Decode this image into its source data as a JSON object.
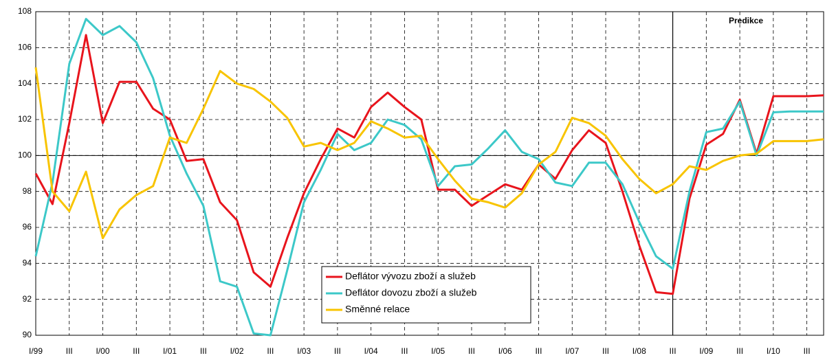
{
  "chart_data": {
    "type": "line",
    "categories": [
      "I/99",
      null,
      "III",
      null,
      "I/00",
      null,
      "III",
      null,
      "I/01",
      null,
      "III",
      null,
      "I/02",
      null,
      "III",
      null,
      "I/03",
      null,
      "III",
      null,
      "I/04",
      null,
      "III",
      null,
      "I/05",
      null,
      "III",
      null,
      "I/06",
      null,
      "III",
      null,
      "I/07",
      null,
      "III",
      null,
      "I/08",
      null,
      "III",
      null,
      "I/09",
      null,
      "III",
      null,
      "I/10",
      null,
      "III",
      null
    ],
    "series": [
      {
        "name": "Deflátor vývozu zboží a služeb",
        "color": "#e8141c",
        "values": [
          99.0,
          97.3,
          101.8,
          106.7,
          101.8,
          104.1,
          104.1,
          102.6,
          102.0,
          99.7,
          99.8,
          97.4,
          96.4,
          93.5,
          92.7,
          95.4,
          97.9,
          99.8,
          101.5,
          101.0,
          102.7,
          103.5,
          102.7,
          102.0,
          98.1,
          98.1,
          97.2,
          97.8,
          98.4,
          98.1,
          99.5,
          98.7,
          100.3,
          101.4,
          100.7,
          98.0,
          95.0,
          92.4,
          92.3,
          97.6,
          100.6,
          101.2,
          103.1,
          100.1,
          103.3,
          103.3,
          103.3,
          103.35
        ]
      },
      {
        "name": "Deflátor dovozu zboží a služeb",
        "color": "#3cc8c8",
        "values": [
          94.4,
          98.5,
          105.1,
          107.6,
          106.7,
          107.2,
          106.3,
          104.3,
          101.1,
          99.0,
          97.2,
          93.0,
          92.7,
          90.1,
          90.0,
          93.6,
          97.4,
          99.2,
          101.2,
          100.3,
          100.7,
          102.0,
          101.7,
          100.9,
          98.3,
          99.4,
          99.5,
          100.4,
          101.4,
          100.2,
          99.8,
          98.5,
          98.3,
          99.6,
          99.6,
          98.4,
          96.3,
          94.4,
          93.7,
          98.0,
          101.3,
          101.5,
          103.0,
          100.0,
          102.4,
          102.45,
          102.45,
          102.45
        ]
      },
      {
        "name": "Směnné relace",
        "color": "#f8c400",
        "values": [
          104.9,
          98.0,
          96.9,
          99.1,
          95.4,
          97.0,
          97.8,
          98.3,
          101.0,
          100.7,
          102.6,
          104.7,
          104.0,
          103.7,
          103.0,
          102.1,
          100.5,
          100.7,
          100.3,
          100.7,
          101.9,
          101.5,
          101.0,
          101.1,
          99.8,
          98.6,
          97.6,
          97.4,
          97.1,
          97.9,
          99.5,
          100.2,
          102.1,
          101.8,
          101.1,
          99.8,
          98.7,
          97.9,
          98.4,
          99.4,
          99.2,
          99.7,
          100.0,
          100.1,
          100.8,
          100.8,
          100.8,
          100.9
        ]
      }
    ],
    "ylim": [
      90,
      108
    ],
    "yticks": [
      90,
      92,
      94,
      96,
      98,
      100,
      102,
      104,
      106,
      108
    ],
    "grid": true,
    "hline": 100,
    "annotation": {
      "text": "Predikce",
      "category": 38
    },
    "legend": "lower center"
  }
}
